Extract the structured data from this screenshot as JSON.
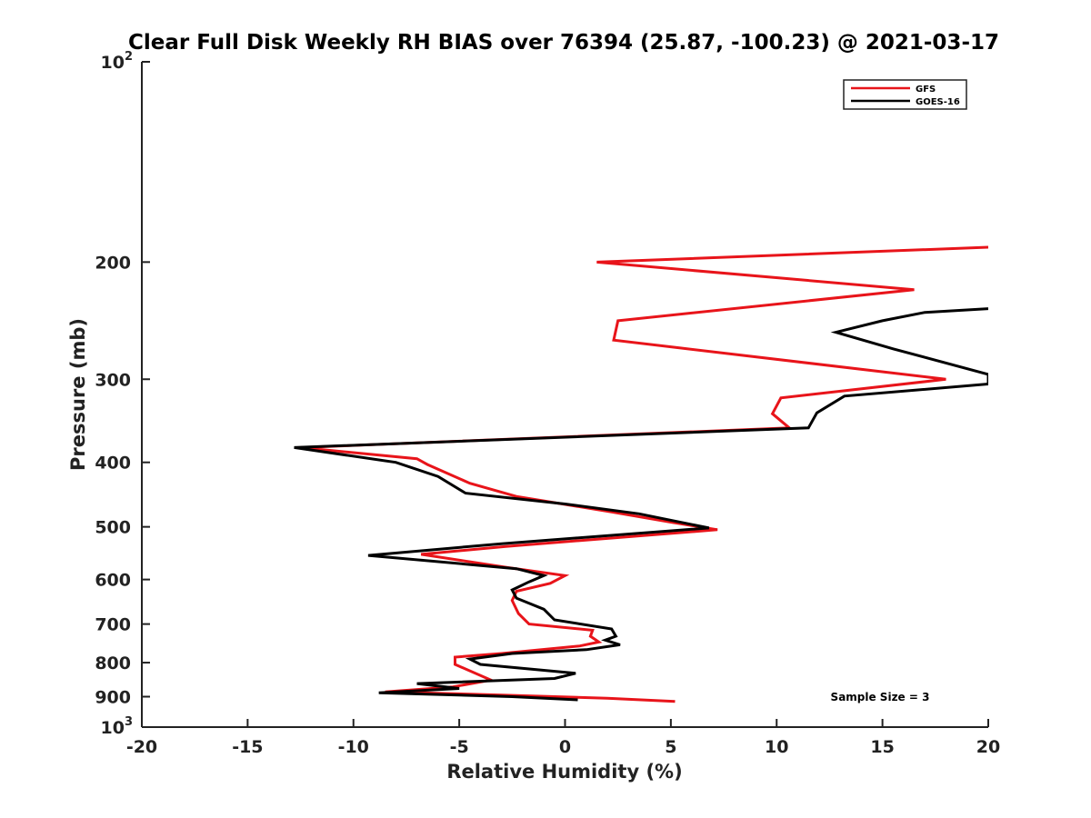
{
  "chart_data": {
    "type": "line",
    "title": "Clear Full Disk Weekly RH BIAS over 76394 (25.87, -100.23) @ 2021-03-17",
    "xlabel": "Relative Humidity (%)",
    "ylabel": "Pressure (mb)",
    "xlim": [
      -20,
      20
    ],
    "ylim": [
      100,
      1000
    ],
    "y_scale": "log",
    "y_reversed": true,
    "x_ticks": [
      "-20",
      "-15",
      "-10",
      "-5",
      "0",
      "5",
      "10",
      "15",
      "20"
    ],
    "y_ticks": [
      {
        "value": 100,
        "base": "10",
        "exp": "2",
        "label": ""
      },
      {
        "value": 200,
        "label": "200"
      },
      {
        "value": 300,
        "label": "300"
      },
      {
        "value": 400,
        "label": "400"
      },
      {
        "value": 500,
        "label": "500"
      },
      {
        "value": 600,
        "label": "600"
      },
      {
        "value": 700,
        "label": "700"
      },
      {
        "value": 800,
        "label": "800"
      },
      {
        "value": 900,
        "label": "900"
      },
      {
        "value": 1000,
        "base": "10",
        "exp": "3",
        "label": ""
      }
    ],
    "legend_position": "top-right",
    "annotation": "Sample Size = 3",
    "series": [
      {
        "name": "GFS",
        "color": "#e8141a",
        "points": [
          [
            20.0,
            190
          ],
          [
            1.5,
            200
          ],
          [
            16.5,
            220
          ],
          [
            2.5,
            245
          ],
          [
            2.3,
            262
          ],
          [
            18.0,
            300
          ],
          [
            10.2,
            320
          ],
          [
            9.8,
            338
          ],
          [
            10.6,
            355
          ],
          [
            -12.5,
            380
          ],
          [
            -7.0,
            395
          ],
          [
            -6.5,
            403
          ],
          [
            -4.5,
            430
          ],
          [
            -2.3,
            450
          ],
          [
            2.2,
            475
          ],
          [
            5.0,
            492
          ],
          [
            7.2,
            505
          ],
          [
            -2.8,
            535
          ],
          [
            -6.8,
            550
          ],
          [
            -2.8,
            575
          ],
          [
            0.0,
            592
          ],
          [
            -0.7,
            608
          ],
          [
            -2.3,
            625
          ],
          [
            -2.5,
            645
          ],
          [
            -2.2,
            675
          ],
          [
            -1.7,
            700
          ],
          [
            1.3,
            715
          ],
          [
            1.2,
            730
          ],
          [
            1.6,
            745
          ],
          [
            0.7,
            755
          ],
          [
            -3.0,
            775
          ],
          [
            -5.2,
            785
          ],
          [
            -5.2,
            805
          ],
          [
            -3.5,
            850
          ],
          [
            -5.3,
            870
          ],
          [
            -8.5,
            885
          ],
          [
            -3.0,
            895
          ],
          [
            2.0,
            905
          ],
          [
            5.2,
            915
          ]
        ]
      },
      {
        "name": "GOES-16",
        "color": "#000000",
        "points": [
          [
            20.0,
            235
          ],
          [
            17.0,
            238
          ],
          [
            15.0,
            245
          ],
          [
            12.8,
            255
          ],
          [
            15.5,
            270
          ],
          [
            20.0,
            295
          ],
          [
            20.0,
            305
          ],
          [
            13.2,
            318
          ],
          [
            11.9,
            337
          ],
          [
            11.5,
            355
          ],
          [
            -12.8,
            380
          ],
          [
            -8.0,
            400
          ],
          [
            -6.0,
            420
          ],
          [
            -4.7,
            445
          ],
          [
            0.0,
            462
          ],
          [
            3.5,
            478
          ],
          [
            6.8,
            502
          ],
          [
            -3.0,
            530
          ],
          [
            -9.3,
            552
          ],
          [
            -2.3,
            578
          ],
          [
            -1.0,
            592
          ],
          [
            -1.7,
            605
          ],
          [
            -2.5,
            622
          ],
          [
            -2.3,
            640
          ],
          [
            -1.0,
            665
          ],
          [
            -0.5,
            690
          ],
          [
            2.2,
            712
          ],
          [
            2.4,
            730
          ],
          [
            1.9,
            740
          ],
          [
            2.6,
            752
          ],
          [
            1.0,
            765
          ],
          [
            -2.5,
            775
          ],
          [
            -4.5,
            790
          ],
          [
            -4.0,
            805
          ],
          [
            0.5,
            830
          ],
          [
            -0.5,
            845
          ],
          [
            -7.0,
            860
          ],
          [
            -5.0,
            875
          ],
          [
            -8.8,
            888
          ],
          [
            -2.5,
            900
          ],
          [
            0.6,
            910
          ]
        ]
      }
    ]
  }
}
